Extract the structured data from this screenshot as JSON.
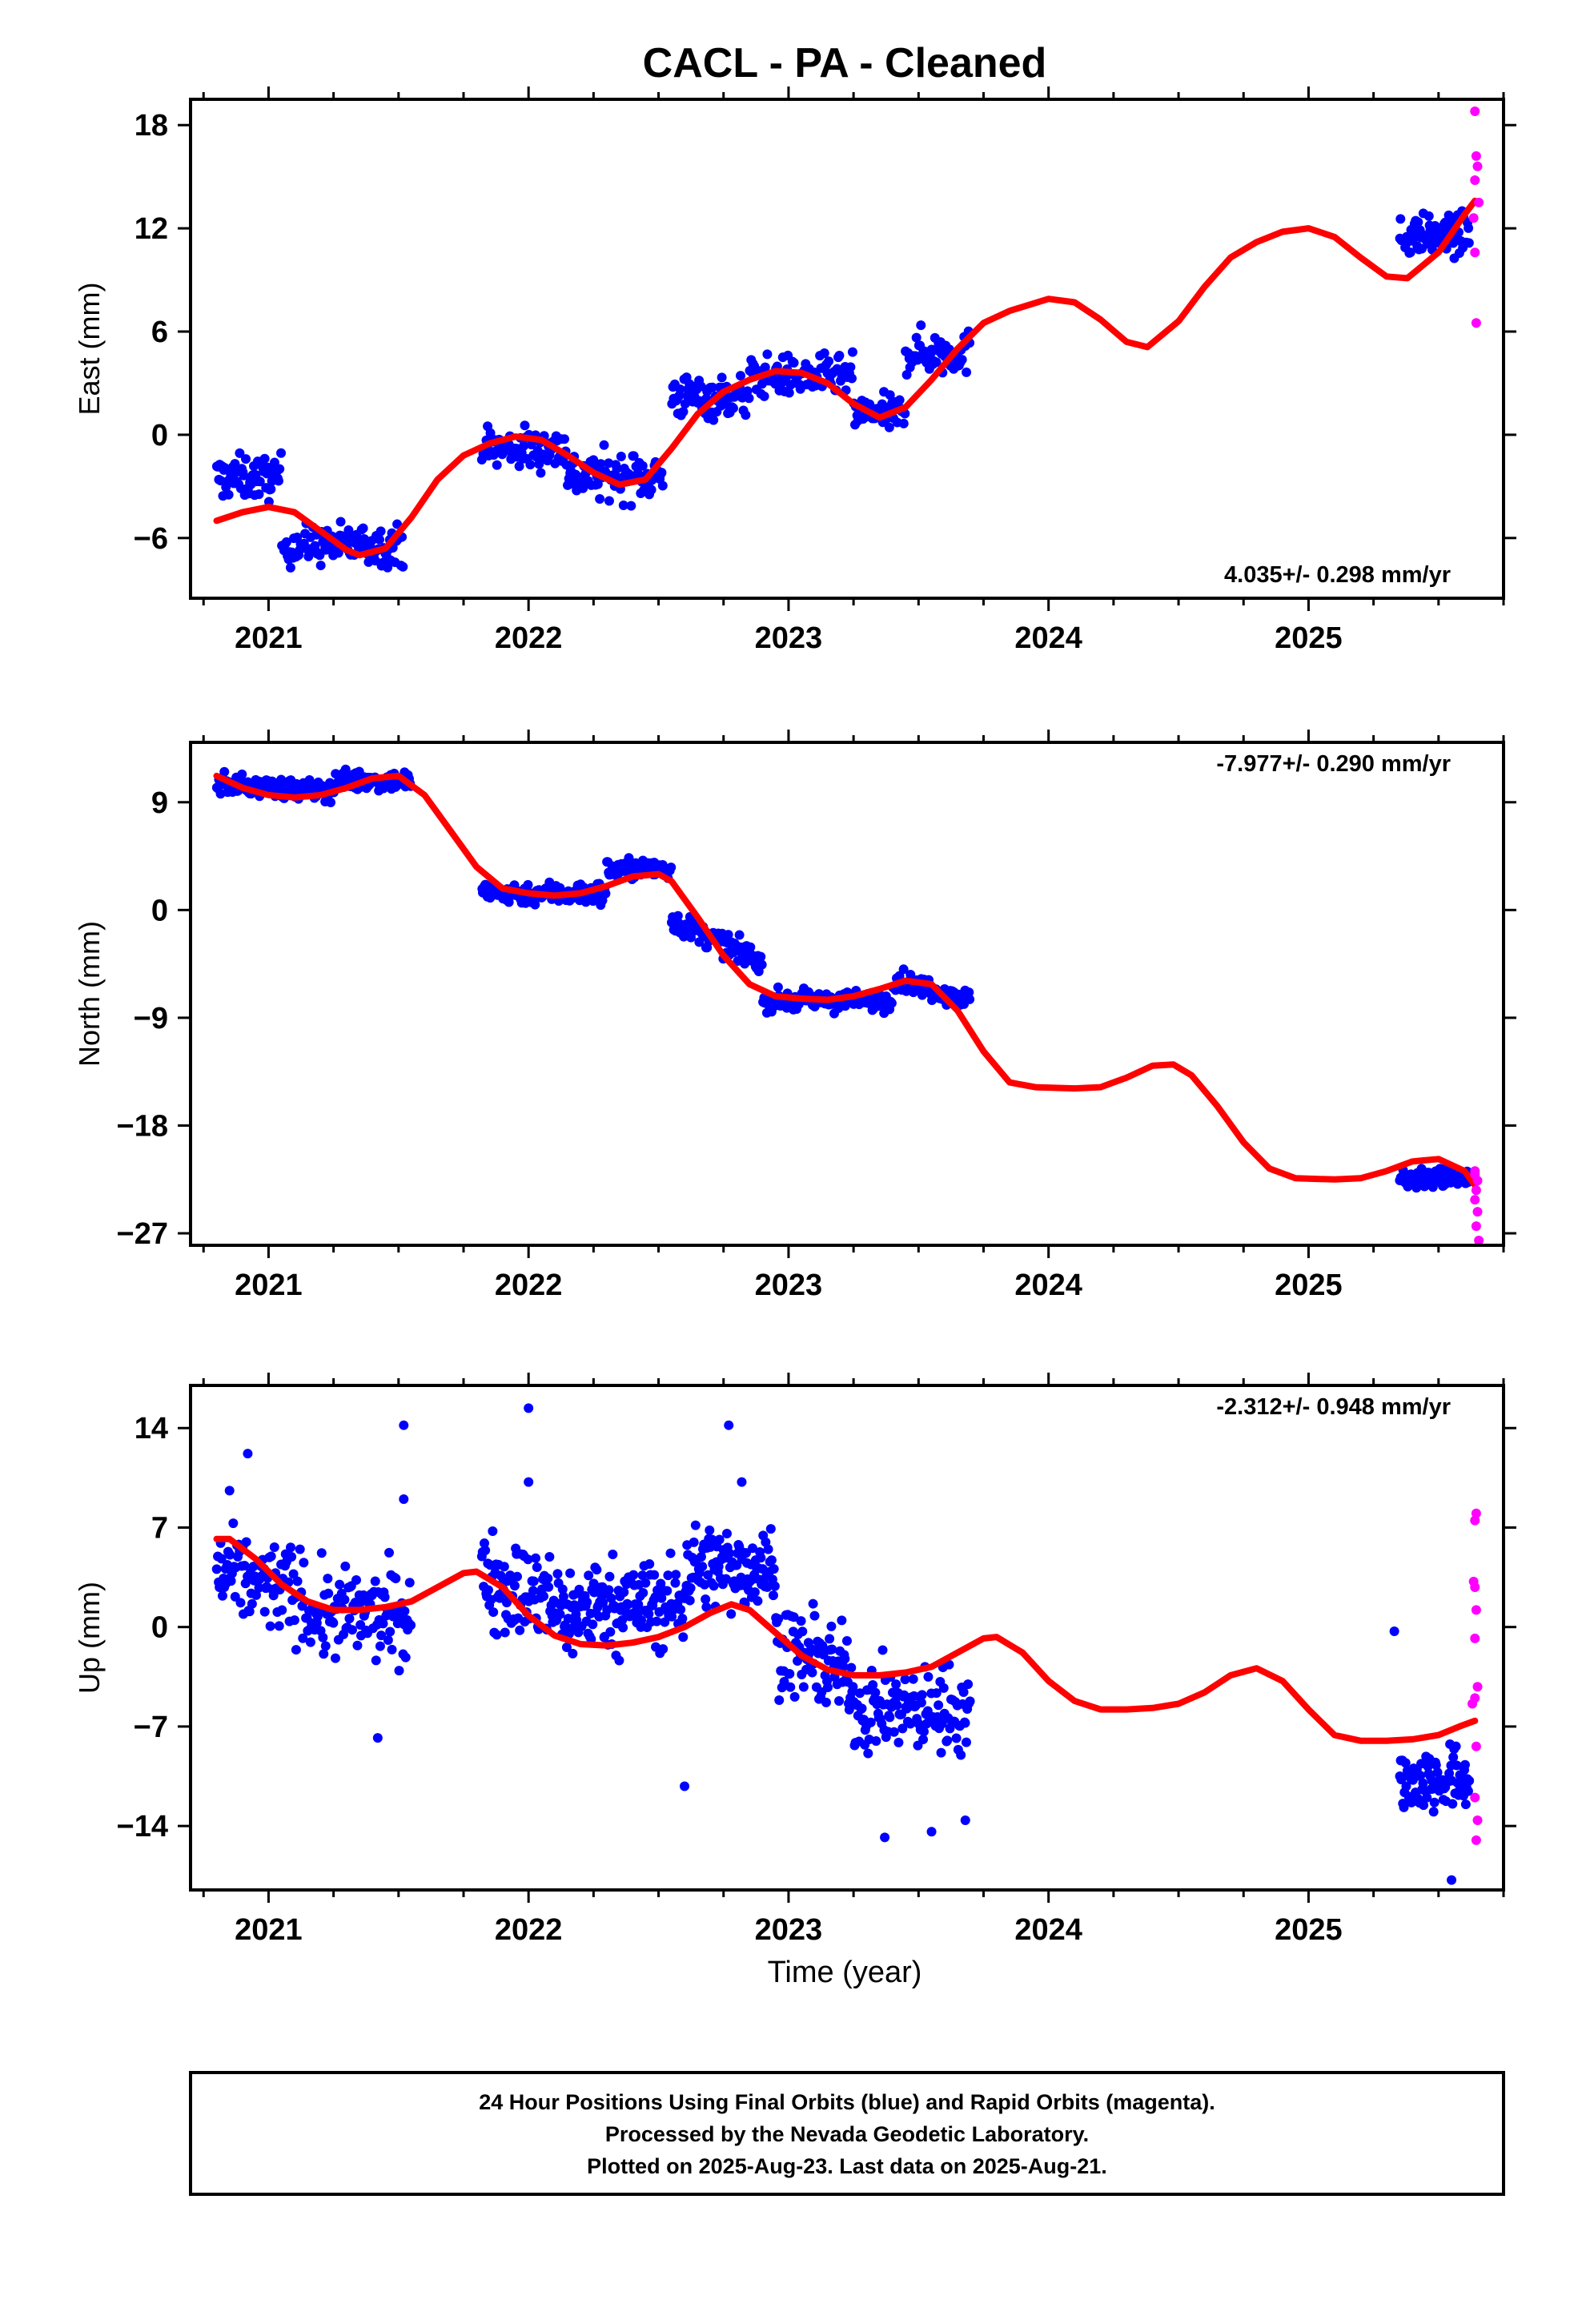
{
  "title": "CACL  - PA - Cleaned",
  "xlabel": "Time (year)",
  "colors": {
    "final": "#0000ff",
    "rapid": "#ff00ff",
    "model": "#ff0000",
    "frame": "#000000"
  },
  "footer": {
    "lines": [
      "24 Hour Positions Using Final Orbits (blue) and Rapid Orbits (magenta).",
      "Processed by the Nevada Geodetic Laboratory.",
      "Plotted on 2025-Aug-23. Last data on 2025-Aug-21."
    ]
  },
  "chart_data": [
    {
      "type": "scatter",
      "component": "east",
      "ylabel": "East (mm)",
      "xlim": [
        2020.7,
        2025.75
      ],
      "ylim": [
        -9.5,
        19.5
      ],
      "yticks": [
        -6,
        0,
        6,
        12,
        18
      ],
      "xticks": [
        2021,
        2022,
        2023,
        2024,
        2025
      ],
      "rate": "4.035+/- 0.298 mm/yr",
      "model": [
        [
          2020.8,
          -5.0
        ],
        [
          2020.9,
          -4.5
        ],
        [
          2021.0,
          -4.2
        ],
        [
          2021.1,
          -4.5
        ],
        [
          2021.2,
          -5.6
        ],
        [
          2021.3,
          -6.7
        ],
        [
          2021.35,
          -7.0
        ],
        [
          2021.45,
          -6.6
        ],
        [
          2021.55,
          -4.8
        ],
        [
          2021.65,
          -2.6
        ],
        [
          2021.75,
          -1.2
        ],
        [
          2021.85,
          -0.5
        ],
        [
          2021.95,
          -0.1
        ],
        [
          2022.05,
          -0.3
        ],
        [
          2022.15,
          -1.2
        ],
        [
          2022.25,
          -2.2
        ],
        [
          2022.35,
          -2.9
        ],
        [
          2022.45,
          -2.6
        ],
        [
          2022.55,
          -0.8
        ],
        [
          2022.65,
          1.2
        ],
        [
          2022.75,
          2.5
        ],
        [
          2022.85,
          3.2
        ],
        [
          2022.95,
          3.7
        ],
        [
          2023.05,
          3.6
        ],
        [
          2023.15,
          3.0
        ],
        [
          2023.25,
          1.8
        ],
        [
          2023.35,
          1.0
        ],
        [
          2023.45,
          1.6
        ],
        [
          2023.55,
          3.2
        ],
        [
          2023.65,
          5.0
        ],
        [
          2023.75,
          6.5
        ],
        [
          2023.85,
          7.2
        ],
        [
          2024.0,
          7.9
        ],
        [
          2024.1,
          7.7
        ],
        [
          2024.2,
          6.7
        ],
        [
          2024.3,
          5.4
        ],
        [
          2024.38,
          5.1
        ],
        [
          2024.5,
          6.6
        ],
        [
          2024.6,
          8.6
        ],
        [
          2024.7,
          10.3
        ],
        [
          2024.8,
          11.2
        ],
        [
          2024.9,
          11.8
        ],
        [
          2025.0,
          12.0
        ],
        [
          2025.1,
          11.5
        ],
        [
          2025.2,
          10.3
        ],
        [
          2025.3,
          9.2
        ],
        [
          2025.38,
          9.1
        ],
        [
          2025.5,
          10.6
        ],
        [
          2025.6,
          12.8
        ],
        [
          2025.64,
          13.6
        ]
      ],
      "final_series": [
        {
          "start": 2020.8,
          "end": 2021.05,
          "n": 65,
          "base": -2.5,
          "slope": 0.0,
          "spread": 1.2
        },
        {
          "start": 2021.05,
          "end": 2021.52,
          "n": 110,
          "base": -6.4,
          "slope": 0.0,
          "spread": 1.1
        },
        {
          "start": 2021.82,
          "end": 2022.15,
          "n": 80,
          "base": -0.8,
          "slope": 0.0,
          "spread": 1.2
        },
        {
          "start": 2022.15,
          "end": 2022.52,
          "n": 90,
          "base": -2.4,
          "slope": 0.0,
          "spread": 1.3
        },
        {
          "start": 2022.55,
          "end": 2022.85,
          "n": 75,
          "base": 2.2,
          "slope": 0.0,
          "spread": 1.2
        },
        {
          "start": 2022.85,
          "end": 2023.25,
          "n": 95,
          "base": 3.4,
          "slope": 0.0,
          "spread": 1.1
        },
        {
          "start": 2023.25,
          "end": 2023.45,
          "n": 50,
          "base": 1.2,
          "slope": 0.0,
          "spread": 1.0
        },
        {
          "start": 2023.45,
          "end": 2023.7,
          "n": 60,
          "base": 4.8,
          "slope": 0.0,
          "spread": 1.2
        },
        {
          "start": 2025.35,
          "end": 2025.62,
          "n": 80,
          "base": 11.6,
          "slope": 0.0,
          "spread": 1.1
        }
      ],
      "rapid": [
        [
          2025.64,
          18.8
        ],
        [
          2025.645,
          16.2
        ],
        [
          2025.65,
          15.6
        ],
        [
          2025.64,
          14.8
        ],
        [
          2025.655,
          13.5
        ],
        [
          2025.635,
          12.6
        ],
        [
          2025.64,
          10.6
        ],
        [
          2025.645,
          6.5
        ]
      ]
    },
    {
      "type": "scatter",
      "component": "north",
      "ylabel": "North (mm)",
      "xlim": [
        2020.7,
        2025.75
      ],
      "ylim": [
        -28,
        14
      ],
      "yticks": [
        -27,
        -18,
        -9,
        0,
        9
      ],
      "xticks": [
        2021,
        2022,
        2023,
        2024,
        2025
      ],
      "rate": "-7.977+/- 0.290 mm/yr",
      "model": [
        [
          2020.8,
          11.2
        ],
        [
          2020.9,
          10.2
        ],
        [
          2021.0,
          9.6
        ],
        [
          2021.1,
          9.4
        ],
        [
          2021.2,
          9.6
        ],
        [
          2021.3,
          10.2
        ],
        [
          2021.4,
          11.0
        ],
        [
          2021.5,
          11.2
        ],
        [
          2021.6,
          9.6
        ],
        [
          2021.7,
          6.6
        ],
        [
          2021.8,
          3.6
        ],
        [
          2021.9,
          1.8
        ],
        [
          2022.0,
          1.4
        ],
        [
          2022.1,
          1.2
        ],
        [
          2022.2,
          1.4
        ],
        [
          2022.3,
          2.0
        ],
        [
          2022.4,
          2.8
        ],
        [
          2022.5,
          3.0
        ],
        [
          2022.55,
          2.4
        ],
        [
          2022.65,
          -0.6
        ],
        [
          2022.75,
          -3.8
        ],
        [
          2022.85,
          -6.2
        ],
        [
          2022.95,
          -7.2
        ],
        [
          2023.05,
          -7.4
        ],
        [
          2023.15,
          -7.5
        ],
        [
          2023.25,
          -7.2
        ],
        [
          2023.35,
          -6.6
        ],
        [
          2023.45,
          -5.9
        ],
        [
          2023.55,
          -6.2
        ],
        [
          2023.65,
          -8.4
        ],
        [
          2023.75,
          -11.8
        ],
        [
          2023.85,
          -14.4
        ],
        [
          2023.95,
          -14.8
        ],
        [
          2024.1,
          -14.9
        ],
        [
          2024.2,
          -14.8
        ],
        [
          2024.3,
          -14.0
        ],
        [
          2024.4,
          -13.0
        ],
        [
          2024.48,
          -12.9
        ],
        [
          2024.55,
          -13.8
        ],
        [
          2024.65,
          -16.4
        ],
        [
          2024.75,
          -19.4
        ],
        [
          2024.85,
          -21.6
        ],
        [
          2024.95,
          -22.4
        ],
        [
          2025.1,
          -22.5
        ],
        [
          2025.2,
          -22.4
        ],
        [
          2025.3,
          -21.8
        ],
        [
          2025.4,
          -21.0
        ],
        [
          2025.5,
          -20.8
        ],
        [
          2025.6,
          -21.8
        ],
        [
          2025.64,
          -23.0
        ]
      ],
      "final_series": [
        {
          "start": 2020.8,
          "end": 2021.25,
          "n": 120,
          "base": 10.2,
          "slope": -1.6,
          "spread": 0.8
        },
        {
          "start": 2021.25,
          "end": 2021.55,
          "n": 85,
          "base": 10.8,
          "slope": 0.0,
          "spread": 0.8
        },
        {
          "start": 2021.82,
          "end": 2022.3,
          "n": 120,
          "base": 1.4,
          "slope": 0.0,
          "spread": 0.9
        },
        {
          "start": 2022.3,
          "end": 2022.55,
          "n": 70,
          "base": 3.4,
          "slope": 0.0,
          "spread": 0.8
        },
        {
          "start": 2022.55,
          "end": 2022.9,
          "n": 90,
          "base": -2.6,
          "slope": -10.0,
          "spread": 0.9
        },
        {
          "start": 2022.9,
          "end": 2023.4,
          "n": 120,
          "base": -7.6,
          "slope": 0.0,
          "spread": 0.8
        },
        {
          "start": 2023.4,
          "end": 2023.7,
          "n": 80,
          "base": -6.6,
          "slope": -6.0,
          "spread": 0.8
        },
        {
          "start": 2025.35,
          "end": 2025.62,
          "n": 80,
          "base": -22.4,
          "slope": 0.0,
          "spread": 0.8
        }
      ],
      "rapid": [
        [
          2025.64,
          -21.8
        ],
        [
          2025.65,
          -22.6
        ],
        [
          2025.645,
          -23.4
        ],
        [
          2025.64,
          -24.2
        ],
        [
          2025.65,
          -25.2
        ],
        [
          2025.645,
          -26.4
        ],
        [
          2025.655,
          -27.6
        ],
        [
          2025.64,
          -22.1
        ]
      ]
    },
    {
      "type": "scatter",
      "component": "up",
      "ylabel": "Up (mm)",
      "xlim": [
        2020.7,
        2025.75
      ],
      "ylim": [
        -18.5,
        17
      ],
      "yticks": [
        -14,
        -7,
        0,
        7,
        14
      ],
      "xticks": [
        2021,
        2022,
        2023,
        2024,
        2025
      ],
      "rate": "-2.312+/- 0.948 mm/yr",
      "model": [
        [
          2020.8,
          6.2
        ],
        [
          2020.85,
          6.2
        ],
        [
          2020.95,
          4.8
        ],
        [
          2021.05,
          3.0
        ],
        [
          2021.15,
          1.8
        ],
        [
          2021.25,
          1.2
        ],
        [
          2021.35,
          1.2
        ],
        [
          2021.45,
          1.4
        ],
        [
          2021.55,
          1.8
        ],
        [
          2021.65,
          2.8
        ],
        [
          2021.75,
          3.8
        ],
        [
          2021.8,
          3.9
        ],
        [
          2021.9,
          2.8
        ],
        [
          2022.0,
          0.8
        ],
        [
          2022.1,
          -0.6
        ],
        [
          2022.2,
          -1.2
        ],
        [
          2022.3,
          -1.3
        ],
        [
          2022.4,
          -1.1
        ],
        [
          2022.5,
          -0.7
        ],
        [
          2022.6,
          0.0
        ],
        [
          2022.7,
          1.0
        ],
        [
          2022.78,
          1.6
        ],
        [
          2022.85,
          1.2
        ],
        [
          2022.95,
          -0.4
        ],
        [
          2023.05,
          -2.0
        ],
        [
          2023.15,
          -3.0
        ],
        [
          2023.25,
          -3.4
        ],
        [
          2023.35,
          -3.4
        ],
        [
          2023.45,
          -3.2
        ],
        [
          2023.55,
          -2.8
        ],
        [
          2023.65,
          -1.8
        ],
        [
          2023.75,
          -0.8
        ],
        [
          2023.8,
          -0.7
        ],
        [
          2023.9,
          -1.8
        ],
        [
          2024.0,
          -3.8
        ],
        [
          2024.1,
          -5.2
        ],
        [
          2024.2,
          -5.8
        ],
        [
          2024.3,
          -5.8
        ],
        [
          2024.4,
          -5.7
        ],
        [
          2024.5,
          -5.4
        ],
        [
          2024.6,
          -4.6
        ],
        [
          2024.7,
          -3.4
        ],
        [
          2024.8,
          -2.9
        ],
        [
          2024.9,
          -3.8
        ],
        [
          2025.0,
          -5.8
        ],
        [
          2025.1,
          -7.6
        ],
        [
          2025.2,
          -8.0
        ],
        [
          2025.3,
          -8.0
        ],
        [
          2025.4,
          -7.9
        ],
        [
          2025.5,
          -7.6
        ],
        [
          2025.58,
          -7.0
        ],
        [
          2025.64,
          -6.6
        ]
      ],
      "final_series": [
        {
          "start": 2020.8,
          "end": 2021.15,
          "n": 95,
          "base": 3.0,
          "slope": -4.0,
          "spread": 3.0
        },
        {
          "start": 2021.15,
          "end": 2021.55,
          "n": 105,
          "base": 0.8,
          "slope": 0.0,
          "spread": 3.0
        },
        {
          "start": 2021.82,
          "end": 2022.2,
          "n": 120,
          "base": 2.2,
          "slope": -8.0,
          "spread": 3.2
        },
        {
          "start": 2022.2,
          "end": 2022.6,
          "n": 130,
          "base": 1.6,
          "slope": 0.0,
          "spread": 3.0
        },
        {
          "start": 2022.6,
          "end": 2022.95,
          "n": 110,
          "base": 4.2,
          "slope": 0.0,
          "spread": 2.8
        },
        {
          "start": 2022.95,
          "end": 2023.25,
          "n": 90,
          "base": -2.4,
          "slope": -8.0,
          "spread": 2.8
        },
        {
          "start": 2023.25,
          "end": 2023.7,
          "n": 130,
          "base": -5.8,
          "slope": 0.0,
          "spread": 2.8
        },
        {
          "start": 2025.35,
          "end": 2025.62,
          "n": 85,
          "base": -10.8,
          "slope": 0.0,
          "spread": 2.2
        }
      ],
      "final_extra": [
        [
          2020.85,
          9.6
        ],
        [
          2020.92,
          12.2
        ],
        [
          2021.42,
          -7.8
        ],
        [
          2021.52,
          14.2
        ],
        [
          2021.52,
          9.0
        ],
        [
          2022.0,
          15.4
        ],
        [
          2022.0,
          10.2
        ],
        [
          2022.6,
          -11.2
        ],
        [
          2022.77,
          14.2
        ],
        [
          2022.82,
          10.2
        ],
        [
          2023.37,
          -14.8
        ],
        [
          2023.55,
          -14.4
        ],
        [
          2023.68,
          -13.6
        ],
        [
          2025.33,
          -0.3
        ],
        [
          2025.55,
          -17.8
        ]
      ],
      "rapid": [
        [
          2025.645,
          8.0
        ],
        [
          2025.64,
          7.5
        ],
        [
          2025.635,
          3.2
        ],
        [
          2025.64,
          2.8
        ],
        [
          2025.645,
          1.2
        ],
        [
          2025.64,
          -0.8
        ],
        [
          2025.65,
          -4.2
        ],
        [
          2025.64,
          -5.0
        ],
        [
          2025.63,
          -5.4
        ],
        [
          2025.645,
          -8.4
        ],
        [
          2025.64,
          -12.0
        ],
        [
          2025.65,
          -13.6
        ],
        [
          2025.645,
          -15.0
        ]
      ]
    }
  ]
}
